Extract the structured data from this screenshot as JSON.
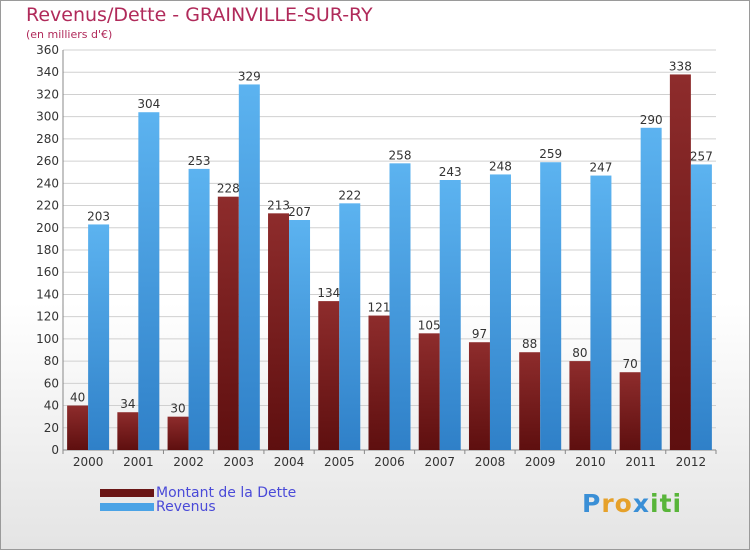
{
  "title": "Revenus/Dette - GRAINVILLE-SUR-RY",
  "subtitle": "(en milliers d'€)",
  "colors": {
    "debt": "#7a1f1f",
    "revenue": "#4aa3e6",
    "title": "#b02a5a",
    "legend_text": "#4a4ad8"
  },
  "legend": {
    "debt_label": "Montant de la Dette",
    "revenue_label": "Revenus"
  },
  "logo": {
    "text": "Proxiti",
    "letters": [
      "P",
      "r",
      "o",
      "x",
      "i",
      "t",
      "i"
    ],
    "letter_colors": [
      "#3a8fd6",
      "#e6a12a",
      "#e6a12a",
      "#3a8fd6",
      "#59b53a",
      "#59b53a",
      "#59b53a"
    ]
  },
  "chart_data": {
    "type": "bar",
    "title": "Revenus/Dette - GRAINVILLE-SUR-RY",
    "ylabel": "(en milliers d'€)",
    "xlabel": "",
    "categories": [
      "2000",
      "2001",
      "2002",
      "2003",
      "2004",
      "2005",
      "2006",
      "2007",
      "2008",
      "2009",
      "2010",
      "2011",
      "2012"
    ],
    "series": [
      {
        "name": "Montant de la Dette",
        "values": [
          40,
          34,
          30,
          228,
          213,
          134,
          121,
          105,
          97,
          88,
          80,
          70,
          338
        ]
      },
      {
        "name": "Revenus",
        "values": [
          203,
          304,
          253,
          329,
          207,
          222,
          258,
          243,
          248,
          259,
          247,
          290,
          257
        ]
      }
    ],
    "ylim": [
      0,
      360
    ],
    "yticks": [
      0,
      20,
      40,
      60,
      80,
      100,
      120,
      140,
      160,
      180,
      200,
      220,
      240,
      260,
      280,
      300,
      320,
      340,
      360
    ],
    "grid": true,
    "legend_position": "bottom-left"
  }
}
